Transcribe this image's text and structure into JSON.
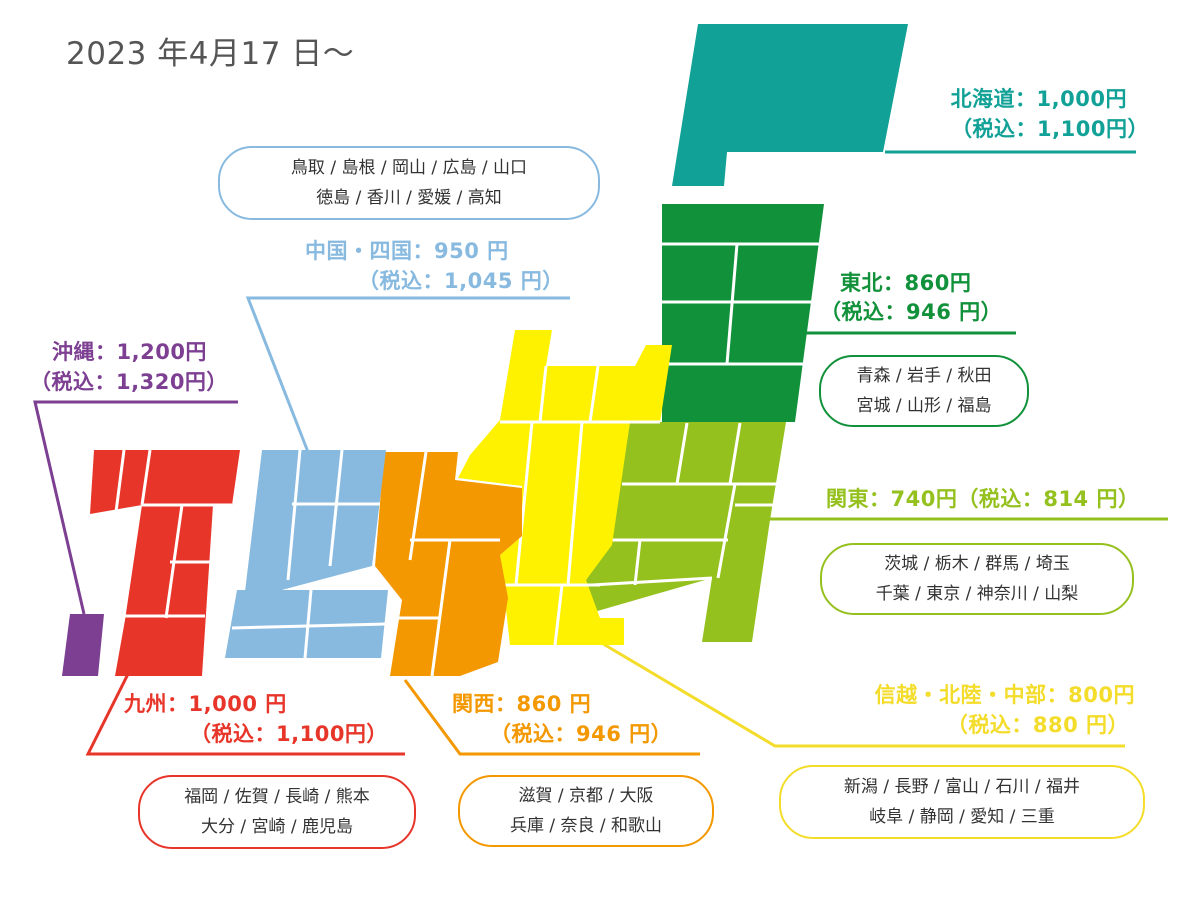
{
  "header": {
    "date": "2023 年4月17 日〜"
  },
  "colors": {
    "hokkaido": "#11a196",
    "tohoku": "#12913b",
    "kanto": "#95c11f",
    "chubu": "#f3dc2a",
    "chubu_map": "#fff200",
    "kansai": "#f39800",
    "chugoku": "#88bae0",
    "kyushu": "#e8352a",
    "okinawa": "#7d3f92"
  },
  "regions": {
    "hokkaido": {
      "name_price": "北海道：1,000円",
      "tax": "（税込：1,100円）"
    },
    "tohoku": {
      "name_price": "東北：860円",
      "tax": "（税込：946 円）",
      "prefs_line1": "青森 / 岩手 / 秋田",
      "prefs_line2": "宮城 / 山形 / 福島"
    },
    "kanto": {
      "name_price": "関東：740円（税込：814 円）",
      "prefs_line1": "茨城 / 栃木 / 群馬 / 埼玉",
      "prefs_line2": "千葉 / 東京 / 神奈川 / 山梨"
    },
    "chubu": {
      "name_price": "信越・北陸・中部：800円",
      "tax": "（税込：880 円）",
      "prefs_line1": "新潟 / 長野 / 富山 / 石川 / 福井",
      "prefs_line2": "岐阜 / 静岡 / 愛知 / 三重"
    },
    "kansai": {
      "name_price": "関西：860 円",
      "tax": "（税込：946 円）",
      "prefs_line1": "滋賀 / 京都 / 大阪",
      "prefs_line2": "兵庫 / 奈良 / 和歌山"
    },
    "chugoku": {
      "name_price": "中国・四国：950 円",
      "tax": "（税込：1,045 円）",
      "prefs_line1": "鳥取 / 島根 / 岡山 / 広島 / 山口",
      "prefs_line2": "徳島 / 香川 / 愛媛 / 高知"
    },
    "kyushu": {
      "name_price": "九州：1,000 円",
      "tax": "（税込：1,100円）",
      "prefs_line1": "福岡 / 佐賀 / 長崎 / 熊本",
      "prefs_line2": "大分 / 宮崎 / 鹿児島"
    },
    "okinawa": {
      "name_price": "沖縄：1,200円",
      "tax": "（税込：1,320円）"
    }
  }
}
